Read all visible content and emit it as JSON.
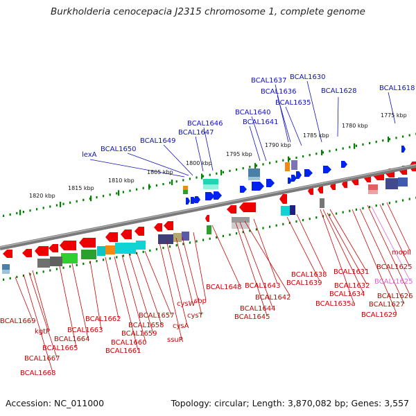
{
  "title": "Burkholderia cenocepacia J2315 chromosome 1, complete genome",
  "footer": {
    "accession": "Accession: NC_011000",
    "topology": "Topology: circular; Length: 3,870,082 bp; Genes: 3,557"
  },
  "colors": {
    "top_label": "#1010c0",
    "bottom_label": "#cc0000",
    "rna_label": "#e060e0",
    "forward_gene": "#0022ee",
    "reverse_gene": "#ee0000",
    "tick": "#008000",
    "backbone": "#777777"
  },
  "kbp_labels": [
    "1775 kbp",
    "1780 kbp",
    "1785 kbp",
    "1790 kbp",
    "1795 kbp",
    "1800 kbp",
    "1805 kbp",
    "1810 kbp",
    "1815 kbp",
    "1820 kbp"
  ],
  "top_labels": [
    "BCAL1630",
    "BCAL1637",
    "BCAL1636",
    "BCAL1635",
    "BCAL1628",
    "BCAL1618",
    "BCAL1640",
    "BCAL1641",
    "BCAL1646",
    "BCAL1647",
    "BCAL1649",
    "BCAL1650",
    "lexA"
  ],
  "bottom_labels": [
    "mopII",
    "BCAL1625",
    "BCALr1625",
    "BCAL1626",
    "BCAL1627",
    "BCAL1629",
    "BCAL1631",
    "BCAL1632",
    "BCAL1634",
    "BCAL1635a",
    "BCAL1638",
    "BCAL1639",
    "BCAL1643",
    "BCAL1642",
    "BCAL1644",
    "BCAL1645",
    "BCAL1648",
    "sbp",
    "cysT",
    "cysW",
    "cysA",
    "ssuR",
    "BCAL1657",
    "BCAL1658",
    "BCAL1659",
    "BCAL1660",
    "BCAL1661",
    "BCAL1662",
    "BCAL1663",
    "BCAL1664",
    "BCAL1665",
    "kgtP",
    "BCAL1667",
    "BCAL1668",
    "BCAL1669"
  ]
}
